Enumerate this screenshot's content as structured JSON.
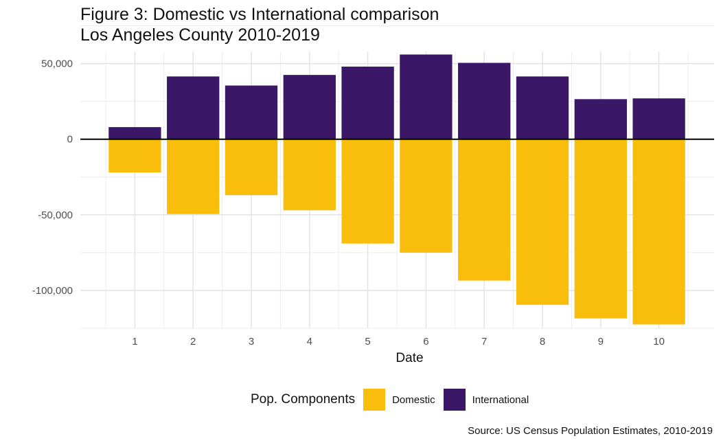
{
  "title_line1": "Figure 3: Domestic vs International comparison",
  "title_line2": "Los Angeles County 2010-2019",
  "caption": "Source: US Census Population Estimates, 2010-2019",
  "legend": {
    "title": "Pop. Components",
    "items": [
      {
        "label": "Domestic",
        "color": "#F9BE0C"
      },
      {
        "label": "International",
        "color": "#3A1767"
      }
    ]
  },
  "chart_data": {
    "type": "bar",
    "stacked": "diverging",
    "xlabel": "Date",
    "ylabel": "",
    "categories": [
      "1",
      "2",
      "3",
      "4",
      "5",
      "6",
      "7",
      "8",
      "9",
      "10"
    ],
    "series": [
      {
        "name": "Domestic",
        "color": "#F9BE0C",
        "values": [
          -22000,
          -49500,
          -37000,
          -47000,
          -69000,
          -75000,
          -93500,
          -109500,
          -118500,
          -122500
        ]
      },
      {
        "name": "International",
        "color": "#3A1767",
        "values": [
          8000,
          41500,
          35500,
          42500,
          48000,
          56000,
          50500,
          41500,
          26500,
          27000
        ]
      }
    ],
    "ylim": [
      -125000,
      58000
    ],
    "yticks": [
      -100000,
      -50000,
      0,
      50000
    ],
    "ytick_labels": [
      "-100,000",
      "-50,000",
      "0",
      "50,000"
    ],
    "zero_line": true,
    "grid": true,
    "legend_position": "bottom"
  }
}
